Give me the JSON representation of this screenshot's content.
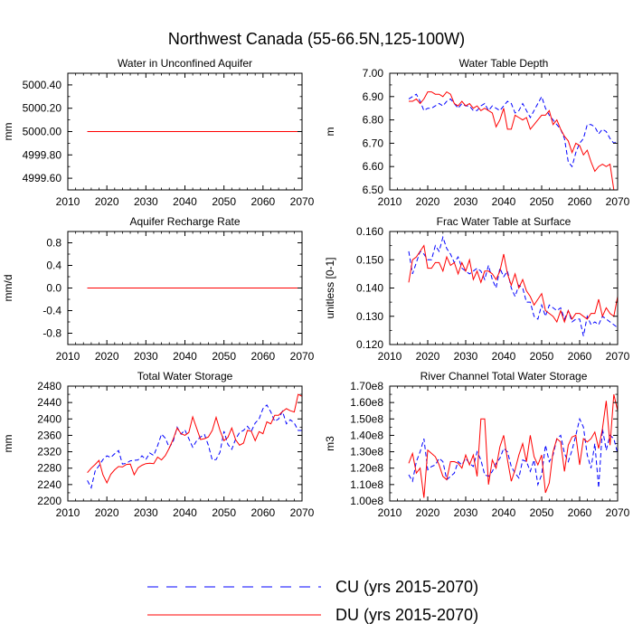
{
  "title": "Northwest Canada (55-66.5N,125-100W)",
  "colors": {
    "cu": "#0000ff",
    "du": "#ff0000"
  },
  "legend": {
    "cu_label": "CU (yrs 2015-2070)",
    "du_label": "DU (yrs 2015-2070)"
  },
  "chart_data": [
    {
      "type": "line",
      "title": "Water in Unconfined Aquifer",
      "ylabel": "mm",
      "xlim": [
        2010,
        2070
      ],
      "ylim": [
        4999.5,
        5000.5
      ],
      "xticks": [
        2010,
        2020,
        2030,
        2040,
        2050,
        2060,
        2070
      ],
      "yticks": [
        4999.6,
        4999.8,
        5000.0,
        5000.2,
        5000.4
      ],
      "ytick_labels": [
        "4999.60",
        "4999.80",
        "5000.00",
        "5000.20",
        "5000.40"
      ],
      "series": [
        {
          "name": "CU",
          "start_year": 2015,
          "values": [
            5000.0,
            5000.0,
            5000.0,
            5000.0,
            5000.0,
            5000.0,
            5000.0,
            5000.0,
            5000.0,
            5000.0,
            5000.0,
            5000.0,
            5000.0,
            5000.0,
            5000.0,
            5000.0,
            5000.0,
            5000.0,
            5000.0,
            5000.0,
            5000.0,
            5000.0,
            5000.0,
            5000.0,
            5000.0,
            5000.0,
            5000.0,
            5000.0,
            5000.0,
            5000.0,
            5000.0,
            5000.0,
            5000.0,
            5000.0,
            5000.0,
            5000.0,
            5000.0,
            5000.0,
            5000.0,
            5000.0,
            5000.0,
            5000.0,
            5000.0,
            5000.0,
            5000.0,
            5000.0,
            5000.0,
            5000.0,
            5000.0,
            5000.0,
            5000.0,
            5000.0,
            5000.0,
            5000.0,
            5000.0,
            5000.0
          ]
        },
        {
          "name": "DU",
          "start_year": 2015,
          "values": [
            5000.0,
            5000.0,
            5000.0,
            5000.0,
            5000.0,
            5000.0,
            5000.0,
            5000.0,
            5000.0,
            5000.0,
            5000.0,
            5000.0,
            5000.0,
            5000.0,
            5000.0,
            5000.0,
            5000.0,
            5000.0,
            5000.0,
            5000.0,
            5000.0,
            5000.0,
            5000.0,
            5000.0,
            5000.0,
            5000.0,
            5000.0,
            5000.0,
            5000.0,
            5000.0,
            5000.0,
            5000.0,
            5000.0,
            5000.0,
            5000.0,
            5000.0,
            5000.0,
            5000.0,
            5000.0,
            5000.0,
            5000.0,
            5000.0,
            5000.0,
            5000.0,
            5000.0,
            5000.0,
            5000.0,
            5000.0,
            5000.0,
            5000.0,
            5000.0,
            5000.0,
            5000.0,
            5000.0,
            5000.0,
            5000.0
          ]
        }
      ]
    },
    {
      "type": "line",
      "title": "Water Table Depth",
      "ylabel": "m",
      "xlim": [
        2010,
        2070
      ],
      "ylim": [
        6.5,
        7.0
      ],
      "xticks": [
        2010,
        2020,
        2030,
        2040,
        2050,
        2060,
        2070
      ],
      "yticks": [
        6.5,
        6.6,
        6.7,
        6.8,
        6.9,
        7.0
      ],
      "ytick_labels": [
        "6.50",
        "6.60",
        "6.70",
        "6.80",
        "6.90",
        "7.00"
      ],
      "series": [
        {
          "name": "CU",
          "start_year": 2015,
          "values": [
            6.89,
            6.9,
            6.91,
            6.88,
            6.84,
            6.85,
            6.85,
            6.86,
            6.87,
            6.86,
            6.88,
            6.89,
            6.87,
            6.85,
            6.87,
            6.86,
            6.86,
            6.84,
            6.84,
            6.86,
            6.87,
            6.84,
            6.86,
            6.85,
            6.84,
            6.86,
            6.88,
            6.87,
            6.83,
            6.84,
            6.87,
            6.84,
            6.81,
            6.84,
            6.87,
            6.9,
            6.85,
            6.82,
            6.8,
            6.78,
            6.76,
            6.72,
            6.62,
            6.6,
            6.66,
            6.7,
            6.72,
            6.78,
            6.78,
            6.77,
            6.74,
            6.76,
            6.75,
            6.72,
            6.7,
            6.71
          ]
        },
        {
          "name": "DU",
          "start_year": 2015,
          "values": [
            6.88,
            6.88,
            6.89,
            6.87,
            6.89,
            6.92,
            6.92,
            6.91,
            6.91,
            6.9,
            6.92,
            6.91,
            6.87,
            6.86,
            6.88,
            6.86,
            6.87,
            6.85,
            6.86,
            6.84,
            6.85,
            6.84,
            6.83,
            6.77,
            6.8,
            6.85,
            6.76,
            6.76,
            6.82,
            6.81,
            6.8,
            6.81,
            6.76,
            6.78,
            6.8,
            6.82,
            6.82,
            6.84,
            6.78,
            6.8,
            6.76,
            6.73,
            6.71,
            6.66,
            6.7,
            6.69,
            6.65,
            6.67,
            6.62,
            6.58,
            6.6,
            6.61,
            6.6,
            6.61,
            6.5,
            6.5
          ]
        }
      ]
    },
    {
      "type": "line",
      "title": "Aquifer Recharge Rate",
      "ylabel": "mm/d",
      "xlim": [
        2010,
        2070
      ],
      "ylim": [
        -1.0,
        1.0
      ],
      "xticks": [
        2010,
        2020,
        2030,
        2040,
        2050,
        2060,
        2070
      ],
      "yticks": [
        -0.8,
        -0.4,
        0.0,
        0.4,
        0.8
      ],
      "ytick_labels": [
        "-0.8",
        "-0.4",
        "0.0",
        "0.4",
        "0.8"
      ],
      "series": [
        {
          "name": "CU",
          "start_year": 2015,
          "values": [
            0,
            0,
            0,
            0,
            0,
            0,
            0,
            0,
            0,
            0,
            0,
            0,
            0,
            0,
            0,
            0,
            0,
            0,
            0,
            0,
            0,
            0,
            0,
            0,
            0,
            0,
            0,
            0,
            0,
            0,
            0,
            0,
            0,
            0,
            0,
            0,
            0,
            0,
            0,
            0,
            0,
            0,
            0,
            0,
            0,
            0,
            0,
            0,
            0,
            0,
            0,
            0,
            0,
            0,
            0,
            0
          ]
        },
        {
          "name": "DU",
          "start_year": 2015,
          "values": [
            0,
            0,
            0,
            0,
            0,
            0,
            0,
            0,
            0,
            0,
            0,
            0,
            0,
            0,
            0,
            0,
            0,
            0,
            0,
            0,
            0,
            0,
            0,
            0,
            0,
            0,
            0,
            0,
            0,
            0,
            0,
            0,
            0,
            0,
            0,
            0,
            0,
            0,
            0,
            0,
            0,
            0,
            0,
            0,
            0,
            0,
            0,
            0,
            0,
            0,
            0,
            0,
            0,
            0,
            0,
            0
          ]
        }
      ]
    },
    {
      "type": "line",
      "title": "Frac Water Table at Surface",
      "ylabel": "unitless [0-1]",
      "xlim": [
        2010,
        2070
      ],
      "ylim": [
        0.12,
        0.16
      ],
      "xticks": [
        2010,
        2020,
        2030,
        2040,
        2050,
        2060,
        2070
      ],
      "yticks": [
        0.12,
        0.13,
        0.14,
        0.15,
        0.16
      ],
      "ytick_labels": [
        "0.120",
        "0.130",
        "0.140",
        "0.150",
        "0.160"
      ],
      "series": [
        {
          "name": "CU",
          "start_year": 2015,
          "values": [
            0.153,
            0.145,
            0.149,
            0.153,
            0.152,
            0.15,
            0.15,
            0.155,
            0.153,
            0.158,
            0.154,
            0.152,
            0.149,
            0.151,
            0.147,
            0.146,
            0.145,
            0.146,
            0.147,
            0.146,
            0.143,
            0.148,
            0.143,
            0.14,
            0.147,
            0.144,
            0.146,
            0.14,
            0.137,
            0.141,
            0.14,
            0.135,
            0.135,
            0.13,
            0.129,
            0.134,
            0.13,
            0.134,
            0.133,
            0.132,
            0.133,
            0.129,
            0.132,
            0.128,
            0.129,
            0.129,
            0.123,
            0.13,
            0.127,
            0.128,
            0.127,
            0.13,
            0.129,
            0.128,
            0.127,
            0.126
          ]
        },
        {
          "name": "DU",
          "start_year": 2015,
          "values": [
            0.142,
            0.15,
            0.151,
            0.153,
            0.155,
            0.147,
            0.147,
            0.149,
            0.149,
            0.146,
            0.151,
            0.148,
            0.149,
            0.145,
            0.149,
            0.146,
            0.15,
            0.143,
            0.146,
            0.142,
            0.146,
            0.146,
            0.145,
            0.143,
            0.146,
            0.152,
            0.145,
            0.141,
            0.145,
            0.14,
            0.143,
            0.139,
            0.137,
            0.134,
            0.136,
            0.138,
            0.132,
            0.131,
            0.13,
            0.128,
            0.132,
            0.128,
            0.132,
            0.129,
            0.131,
            0.131,
            0.13,
            0.129,
            0.131,
            0.131,
            0.136,
            0.13,
            0.133,
            0.131,
            0.13,
            0.137
          ]
        }
      ]
    },
    {
      "type": "line",
      "title": "Total Water Storage",
      "ylabel": "mm",
      "xlim": [
        2010,
        2070
      ],
      "ylim": [
        2200,
        2480
      ],
      "xticks": [
        2010,
        2020,
        2030,
        2040,
        2050,
        2060,
        2070
      ],
      "yticks": [
        2200,
        2240,
        2280,
        2320,
        2360,
        2400,
        2440,
        2480
      ],
      "ytick_labels": [
        "2200",
        "2240",
        "2280",
        "2320",
        "2360",
        "2400",
        "2440",
        "2480"
      ],
      "series": [
        {
          "name": "CU",
          "start_year": 2015,
          "values": [
            2250,
            2232,
            2273,
            2286,
            2301,
            2310,
            2306,
            2315,
            2323,
            2290,
            2292,
            2298,
            2299,
            2300,
            2310,
            2301,
            2317,
            2311,
            2335,
            2363,
            2353,
            2330,
            2346,
            2380,
            2363,
            2373,
            2352,
            2331,
            2347,
            2356,
            2362,
            2336,
            2300,
            2301,
            2319,
            2370,
            2338,
            2326,
            2351,
            2367,
            2372,
            2382,
            2370,
            2390,
            2400,
            2425,
            2434,
            2417,
            2394,
            2400,
            2419,
            2388,
            2398,
            2390,
            2372,
            2372
          ]
        },
        {
          "name": "DU",
          "start_year": 2015,
          "values": [
            2269,
            2280,
            2289,
            2299,
            2264,
            2244,
            2265,
            2276,
            2284,
            2283,
            2289,
            2290,
            2264,
            2281,
            2287,
            2291,
            2292,
            2291,
            2307,
            2300,
            2311,
            2329,
            2351,
            2378,
            2364,
            2360,
            2367,
            2405,
            2377,
            2350,
            2352,
            2356,
            2372,
            2404,
            2372,
            2347,
            2355,
            2378,
            2349,
            2336,
            2341,
            2372,
            2370,
            2347,
            2369,
            2364,
            2393,
            2388,
            2409,
            2409,
            2418,
            2425,
            2420,
            2417,
            2460,
            2455
          ]
        }
      ]
    },
    {
      "type": "line",
      "title": "River Channel Total Water Storage",
      "ylabel": "m3",
      "xlim": [
        2010,
        2070
      ],
      "ylim": [
        100000000,
        170000000
      ],
      "xticks": [
        2010,
        2020,
        2030,
        2040,
        2050,
        2060,
        2070
      ],
      "yticks": [
        100000000,
        110000000,
        120000000,
        130000000,
        140000000,
        150000000,
        160000000,
        170000000
      ],
      "ytick_labels": [
        "1.00e8",
        "1.10e8",
        "1.20e8",
        "1.30e8",
        "1.40e8",
        "1.50e8",
        "1.60e8",
        "1.70e8"
      ],
      "series": [
        {
          "name": "CU",
          "start_year": 2015,
          "values": [
            116000000,
            112000000,
            124000000,
            130000000,
            138000000,
            119000000,
            121000000,
            122000000,
            126000000,
            124000000,
            113000000,
            115000000,
            117000000,
            124000000,
            122000000,
            126000000,
            123000000,
            121000000,
            130000000,
            125000000,
            116000000,
            115000000,
            118000000,
            123000000,
            126000000,
            132000000,
            130000000,
            121000000,
            117000000,
            114000000,
            125000000,
            124000000,
            118000000,
            125000000,
            110000000,
            116000000,
            134000000,
            124000000,
            128000000,
            138000000,
            140000000,
            129000000,
            124000000,
            131000000,
            140000000,
            150000000,
            145000000,
            128000000,
            120000000,
            135000000,
            108000000,
            144000000,
            131000000,
            140000000,
            138000000,
            129000000
          ]
        },
        {
          "name": "DU",
          "start_year": 2015,
          "values": [
            123000000,
            129000000,
            117000000,
            120000000,
            102000000,
            131000000,
            129000000,
            127000000,
            122000000,
            115000000,
            113000000,
            124000000,
            124000000,
            123000000,
            120000000,
            128000000,
            122000000,
            128000000,
            115000000,
            150000000,
            150000000,
            110000000,
            125000000,
            120000000,
            133000000,
            140000000,
            125000000,
            112000000,
            119000000,
            128000000,
            135000000,
            124000000,
            140000000,
            127000000,
            122000000,
            128000000,
            105000000,
            111000000,
            130000000,
            138000000,
            136000000,
            118000000,
            134000000,
            139000000,
            140000000,
            122000000,
            138000000,
            136000000,
            138000000,
            142000000,
            132000000,
            144000000,
            161000000,
            134000000,
            165000000,
            155000000
          ]
        }
      ]
    }
  ]
}
